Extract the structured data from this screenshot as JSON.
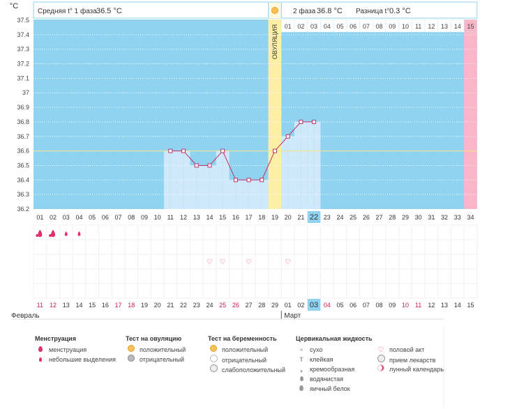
{
  "header": {
    "unit": "°C",
    "phase1_label": "Средняя t° 1 фаза",
    "phase1_value": "36.5 °C",
    "phase2_label": "2 фаза",
    "phase2_value": "36.8 °C",
    "diff_label": "Разница t°",
    "diff_value": "0.3 °C"
  },
  "ovulation_label": "ОВУЛЯЦИЯ",
  "months": {
    "first": "Февраль",
    "second": "Март"
  },
  "colors": {
    "sky": "#8fd3f0",
    "bar": "#cfe9fa",
    "ovulation": "#fdf0a6",
    "period": "#f8b6c8",
    "line": "#c0306a",
    "coverline": "#f2e38a",
    "red": "#cc1a4a"
  },
  "chart_data": {
    "type": "line",
    "ylim": [
      36.2,
      37.5
    ],
    "yticks": [
      "37.5",
      "37.4",
      "37.3",
      "37.2",
      "37.1",
      "37",
      "36.9",
      "36.8",
      "36.7",
      "36.6",
      "36.5",
      "36.4",
      "36.3",
      "36.2"
    ],
    "cover_line": 36.6,
    "cycle_days": [
      "01",
      "02",
      "03",
      "04",
      "05",
      "06",
      "07",
      "08",
      "09",
      "10",
      "11",
      "12",
      "13",
      "14",
      "15",
      "16",
      "17",
      "18",
      "19",
      "20",
      "21",
      "22",
      "23",
      "24",
      "25",
      "26",
      "27",
      "28",
      "29",
      "30",
      "31",
      "32",
      "33",
      "34"
    ],
    "current_day": "22",
    "ovulation_day": "19",
    "top_days": [
      "01",
      "02",
      "03",
      "04",
      "05",
      "06",
      "07",
      "08",
      "09",
      "10",
      "11",
      "12",
      "13",
      "14",
      "15"
    ],
    "dates": [
      "11",
      "12",
      "13",
      "14",
      "15",
      "16",
      "17",
      "18",
      "19",
      "20",
      "21",
      "22",
      "23",
      "24",
      "25",
      "26",
      "27",
      "28",
      "29",
      "01",
      "02",
      "03",
      "04",
      "05",
      "06",
      "07",
      "08",
      "09",
      "10",
      "11",
      "12",
      "13",
      "14",
      "15"
    ],
    "red_dates_index": [
      0,
      1,
      6,
      7,
      14,
      15,
      22,
      28,
      29
    ],
    "today_date_index": 21,
    "temperatures": [
      {
        "day": 11,
        "value": 36.6
      },
      {
        "day": 12,
        "value": 36.6
      },
      {
        "day": 13,
        "value": 36.5
      },
      {
        "day": 14,
        "value": 36.5
      },
      {
        "day": 15,
        "value": 36.6
      },
      {
        "day": 16,
        "value": 36.4
      },
      {
        "day": 17,
        "value": 36.4
      },
      {
        "day": 18,
        "value": 36.4
      },
      {
        "day": 19,
        "value": 36.6
      },
      {
        "day": 20,
        "value": 36.7
      },
      {
        "day": 21,
        "value": 36.8
      },
      {
        "day": 22,
        "value": 36.8
      }
    ],
    "menstruation": [
      {
        "day": 1,
        "kind": "big"
      },
      {
        "day": 2,
        "kind": "big"
      },
      {
        "day": 3,
        "kind": "small"
      },
      {
        "day": 4,
        "kind": "small"
      }
    ],
    "intercourse_days": [
      14,
      15,
      17,
      20
    ]
  },
  "legend": {
    "menstruation": {
      "title": "Менструация",
      "items": [
        "менструация",
        "небольшие выделения"
      ]
    },
    "ovulation_test": {
      "title": "Тест на овуляцию",
      "items": [
        "положительный",
        "отрицательный"
      ]
    },
    "pregnancy_test": {
      "title": "Тест на беременность",
      "items": [
        "положительный",
        "отрицательный",
        "слабоположительный"
      ]
    },
    "cervical": {
      "title": "Цервикальная жидкость",
      "items": [
        "сухо",
        "клейкая",
        "кремообразная",
        "водянистая",
        "яичный белок"
      ]
    },
    "other": {
      "items": [
        "половой акт",
        "прием лекарств",
        "лунный календарь"
      ]
    }
  }
}
